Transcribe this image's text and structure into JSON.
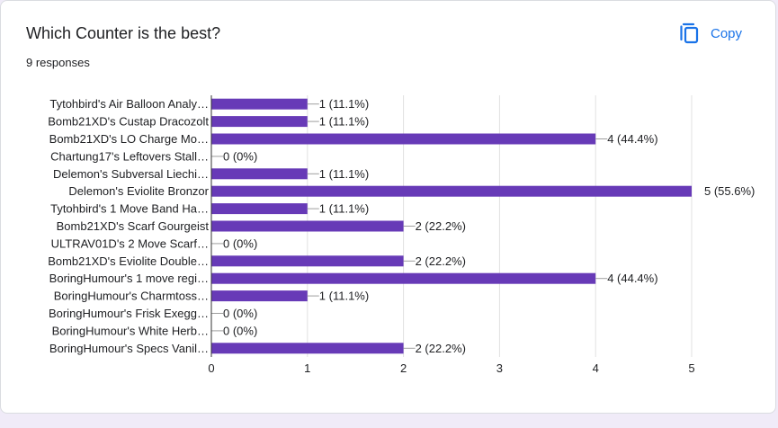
{
  "question": {
    "title": "Which Counter is the best?",
    "responses": "9 responses"
  },
  "actions": {
    "copy_label": "Copy",
    "copy_icon": "copy-icon"
  },
  "colors": {
    "bar": "#673ab7",
    "grid": "#e0e0e0",
    "text": "#202124",
    "accent": "#1a73e8"
  },
  "chart_data": {
    "type": "bar",
    "orientation": "horizontal",
    "categories": [
      "Tytohbird's Air Balloon Analy…",
      "Bomb21XD's Custap Dracozolt",
      "Bomb21XD's LO Charge Mo…",
      "Chartung17's Leftovers Stall…",
      "Delemon's Subversal Liechi…",
      "Delemon's Eviolite Bronzor",
      "Tytohbird's 1 Move Band Ha…",
      "Bomb21XD's Scarf Gourgeist",
      "ULTRAV01D's 2 Move Scarf…",
      "Bomb21XD's Eviolite Double…",
      "BoringHumour's 1 move regi…",
      "BoringHumour's Charmtoss…",
      "BoringHumour's Frisk Exegg…",
      "BoringHumour's White Herb…",
      "BoringHumour's Specs Vanil…"
    ],
    "values": [
      1,
      1,
      4,
      0,
      1,
      5,
      1,
      2,
      0,
      2,
      4,
      1,
      0,
      0,
      2
    ],
    "data_labels": [
      "1 (11.1%)",
      "1 (11.1%)",
      "4 (44.4%)",
      "0 (0%)",
      "1 (11.1%)",
      "5 (55.6%)",
      "1 (11.1%)",
      "2 (22.2%)",
      "0 (0%)",
      "2 (22.2%)",
      "4 (44.4%)",
      "1 (11.1%)",
      "0 (0%)",
      "0 (0%)",
      "2 (22.2%)"
    ],
    "xlim": [
      0,
      5
    ],
    "x_ticks": [
      "0",
      "1",
      "2",
      "3",
      "4",
      "5"
    ],
    "grid": true,
    "legend": "none"
  }
}
